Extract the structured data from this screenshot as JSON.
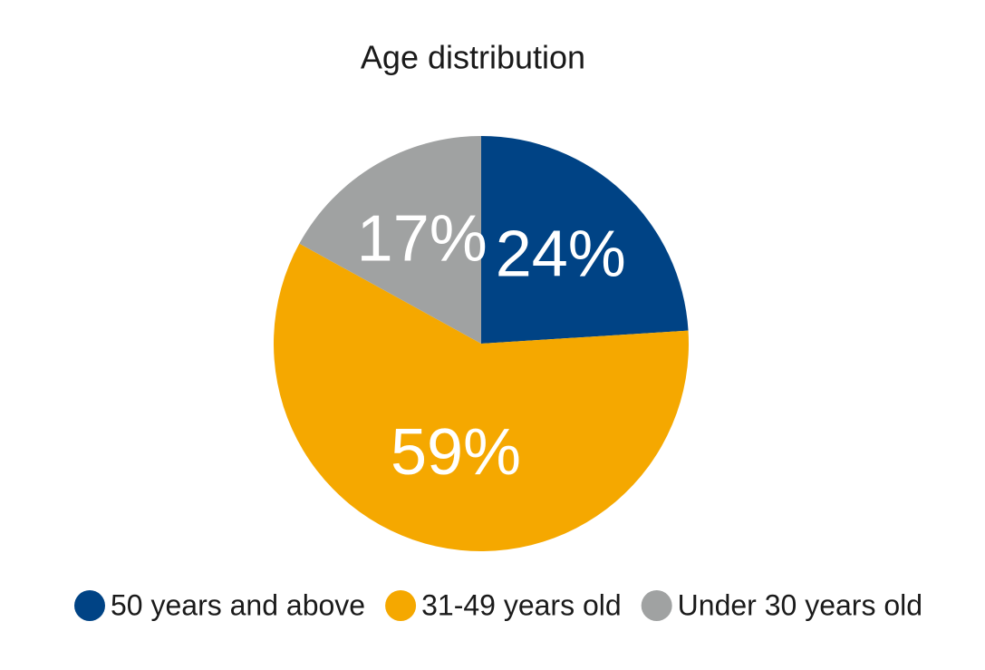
{
  "chart_data": {
    "type": "pie",
    "title": "Age distribution",
    "categories": [
      "50 years and above",
      "31-49 years old",
      "Under 30 years old"
    ],
    "values": [
      24,
      59,
      17
    ],
    "value_labels": [
      "24%",
      "59%",
      "17%"
    ],
    "colors": [
      "#004385",
      "#f5a800",
      "#a0a2a2"
    ],
    "legend": "bottom"
  }
}
